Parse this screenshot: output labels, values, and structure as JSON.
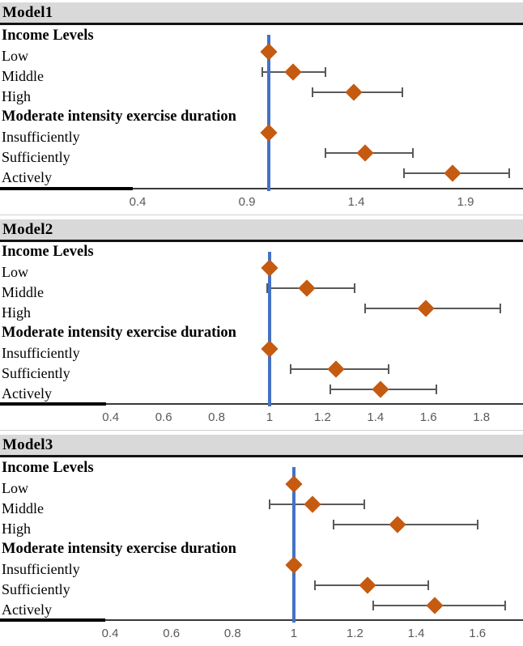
{
  "figure": {
    "kind": "forest-plot",
    "colors": {
      "background": "#ffffff",
      "header_bg": "#d9d9d9",
      "header_underline": "#141414",
      "axis_line": "#3a3a3a",
      "tick_label": "#595959",
      "ref_line": "#4472c4",
      "diamond": "#c55a11",
      "whisker": "#595959",
      "label_text": "#000000",
      "baseline_segment": "#000000"
    }
  },
  "chart_data": [
    {
      "type": "forest",
      "title": "Model1",
      "xlabel": "",
      "ylabel": "",
      "ref_line": 1.0,
      "xlim": [
        -0.23,
        2.163
      ],
      "x_ticks": [
        {
          "label": "0.4",
          "value": 0.4
        },
        {
          "label": "0.9",
          "value": 0.9
        },
        {
          "label": "1.4",
          "value": 1.4
        },
        {
          "label": "1.9",
          "value": 1.9
        }
      ],
      "rows": [
        {
          "kind": "header",
          "label": "Income Levels"
        },
        {
          "kind": "estimate",
          "label": "Low",
          "estimate": 1.0,
          "ci_low": null,
          "ci_high": null,
          "reference": true
        },
        {
          "kind": "estimate",
          "label": "Middle",
          "estimate": 1.11,
          "ci_low": 0.97,
          "ci_high": 1.26,
          "reference": false
        },
        {
          "kind": "estimate",
          "label": "High",
          "estimate": 1.39,
          "ci_low": 1.2,
          "ci_high": 1.61,
          "reference": false
        },
        {
          "kind": "header",
          "label": "Moderate intensity exercise duration"
        },
        {
          "kind": "estimate",
          "label": "Insufficiently",
          "estimate": 1.0,
          "ci_low": null,
          "ci_high": null,
          "reference": true
        },
        {
          "kind": "estimate",
          "label": "Sufficiently",
          "estimate": 1.44,
          "ci_low": 1.26,
          "ci_high": 1.66,
          "reference": false
        },
        {
          "kind": "estimate",
          "label": "Actively",
          "estimate": 1.84,
          "ci_low": 1.62,
          "ci_high": 2.1,
          "reference": false
        }
      ]
    },
    {
      "type": "forest",
      "title": "Model2",
      "xlabel": "",
      "ylabel": "",
      "ref_line": 1.0,
      "xlim": [
        -0.018,
        1.957
      ],
      "x_ticks": [
        {
          "label": "0.4",
          "value": 0.4
        },
        {
          "label": "0.6",
          "value": 0.6
        },
        {
          "label": "0.8",
          "value": 0.8
        },
        {
          "label": "1",
          "value": 1.0
        },
        {
          "label": "1.2",
          "value": 1.2
        },
        {
          "label": "1.4",
          "value": 1.4
        },
        {
          "label": "1.6",
          "value": 1.6
        },
        {
          "label": "1.8",
          "value": 1.8
        }
      ],
      "rows": [
        {
          "kind": "header",
          "label": "Income Levels"
        },
        {
          "kind": "estimate",
          "label": "Low",
          "estimate": 1.0,
          "ci_low": null,
          "ci_high": null,
          "reference": true
        },
        {
          "kind": "estimate",
          "label": "Middle",
          "estimate": 1.14,
          "ci_low": 0.99,
          "ci_high": 1.32,
          "reference": false
        },
        {
          "kind": "estimate",
          "label": "High",
          "estimate": 1.59,
          "ci_low": 1.36,
          "ci_high": 1.87,
          "reference": false
        },
        {
          "kind": "header",
          "label": "Moderate intensity exercise duration"
        },
        {
          "kind": "estimate",
          "label": "Insufficiently",
          "estimate": 1.0,
          "ci_low": null,
          "ci_high": null,
          "reference": true
        },
        {
          "kind": "estimate",
          "label": "Sufficiently",
          "estimate": 1.25,
          "ci_low": 1.08,
          "ci_high": 1.45,
          "reference": false
        },
        {
          "kind": "estimate",
          "label": "Actively",
          "estimate": 1.42,
          "ci_low": 1.23,
          "ci_high": 1.63,
          "reference": false
        }
      ]
    },
    {
      "type": "forest",
      "title": "Model3",
      "xlabel": "",
      "ylabel": "",
      "ref_line": 1.0,
      "xlim": [
        0.04,
        1.749
      ],
      "x_ticks": [
        {
          "label": "0.4",
          "value": 0.4
        },
        {
          "label": "0.6",
          "value": 0.6
        },
        {
          "label": "0.8",
          "value": 0.8
        },
        {
          "label": "1",
          "value": 1.0
        },
        {
          "label": "1.2",
          "value": 1.2
        },
        {
          "label": "1.4",
          "value": 1.4
        },
        {
          "label": "1.6",
          "value": 1.6
        }
      ],
      "rows": [
        {
          "kind": "header",
          "label": "Income Levels"
        },
        {
          "kind": "estimate",
          "label": "Low",
          "estimate": 1.0,
          "ci_low": null,
          "ci_high": null,
          "reference": true
        },
        {
          "kind": "estimate",
          "label": "Middle",
          "estimate": 1.06,
          "ci_low": 0.92,
          "ci_high": 1.23,
          "reference": false
        },
        {
          "kind": "estimate",
          "label": "High",
          "estimate": 1.34,
          "ci_low": 1.13,
          "ci_high": 1.6,
          "reference": false
        },
        {
          "kind": "header",
          "label": "Moderate intensity exercise duration"
        },
        {
          "kind": "estimate",
          "label": "Insufficiently",
          "estimate": 1.0,
          "ci_low": null,
          "ci_high": null,
          "reference": true
        },
        {
          "kind": "estimate",
          "label": "Sufficiently",
          "estimate": 1.24,
          "ci_low": 1.07,
          "ci_high": 1.44,
          "reference": false
        },
        {
          "kind": "estimate",
          "label": "Actively",
          "estimate": 1.46,
          "ci_low": 1.26,
          "ci_high": 1.69,
          "reference": false
        }
      ]
    }
  ]
}
